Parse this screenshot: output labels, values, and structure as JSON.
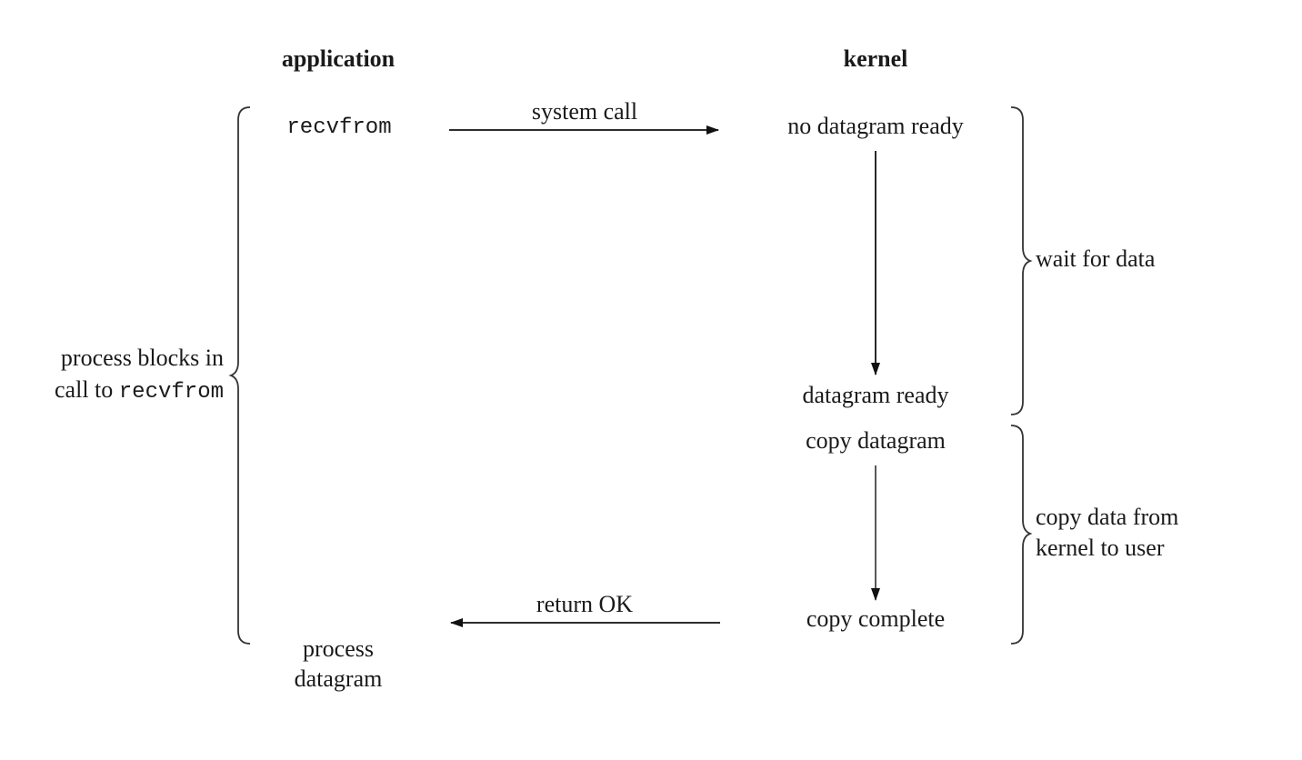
{
  "headers": {
    "application": "application",
    "kernel": "kernel"
  },
  "application": {
    "call": "recvfrom",
    "process_line1": "process",
    "process_line2": "datagram"
  },
  "blocks_label": {
    "line1": "process blocks in",
    "line2_prefix": "call to",
    "line2_code": "recvfrom"
  },
  "kernel": {
    "no_datagram_ready": "no datagram ready",
    "datagram_ready": "datagram ready",
    "copy_datagram": "copy datagram",
    "copy_complete": "copy complete"
  },
  "arrows": {
    "system_call": "system call",
    "return_ok": "return OK"
  },
  "phases": {
    "wait_for_data": "wait for data",
    "copy_line1": "copy data from",
    "copy_line2": "kernel to user"
  }
}
